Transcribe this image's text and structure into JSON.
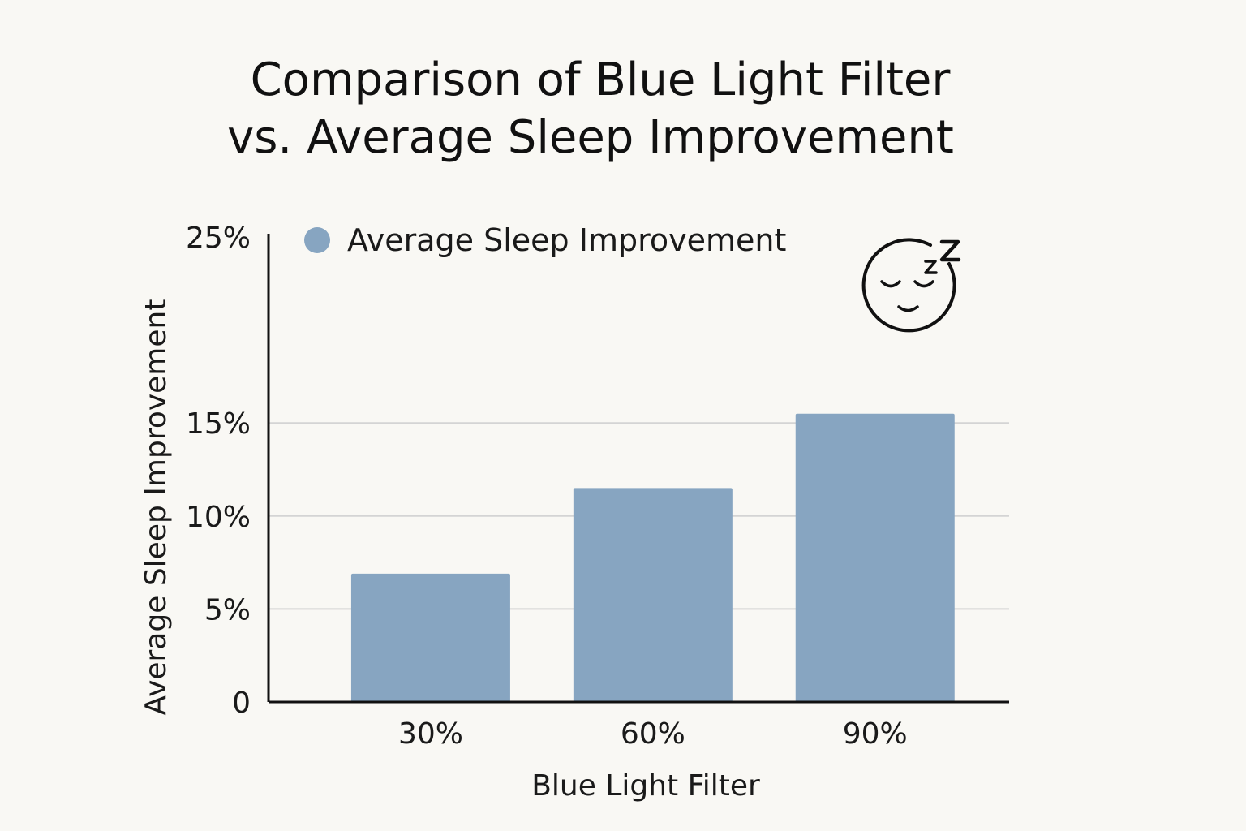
{
  "chart_data": {
    "type": "bar",
    "title_lines": [
      "Comparison of Blue Light Filter",
      "vs. Average Sleep Improvement"
    ],
    "xlabel": "Blue Light Filter",
    "ylabel": "Average Sleep Improvement",
    "categories": [
      "30%",
      "60%",
      "90%"
    ],
    "series": [
      {
        "name": "Average Sleep Improvement",
        "values": [
          6.9,
          11.5,
          15.5
        ],
        "color": "#87a5c1"
      }
    ],
    "y_ticks": [
      {
        "value": 0,
        "label": "0"
      },
      {
        "value": 5,
        "label": "5%"
      },
      {
        "value": 10,
        "label": "10%"
      },
      {
        "value": 15,
        "label": "15%"
      },
      {
        "value": 25,
        "label": "25%"
      }
    ],
    "ylim": [
      0,
      25
    ],
    "grid": true,
    "legend_position": "top-left",
    "annotation_icon": "sleeping-face-icon"
  },
  "colors": {
    "background": "#f9f8f4",
    "bar": "#87a5c1",
    "grid": "#d4d4d4",
    "axis": "#111111",
    "text": "#1a1a1a"
  }
}
